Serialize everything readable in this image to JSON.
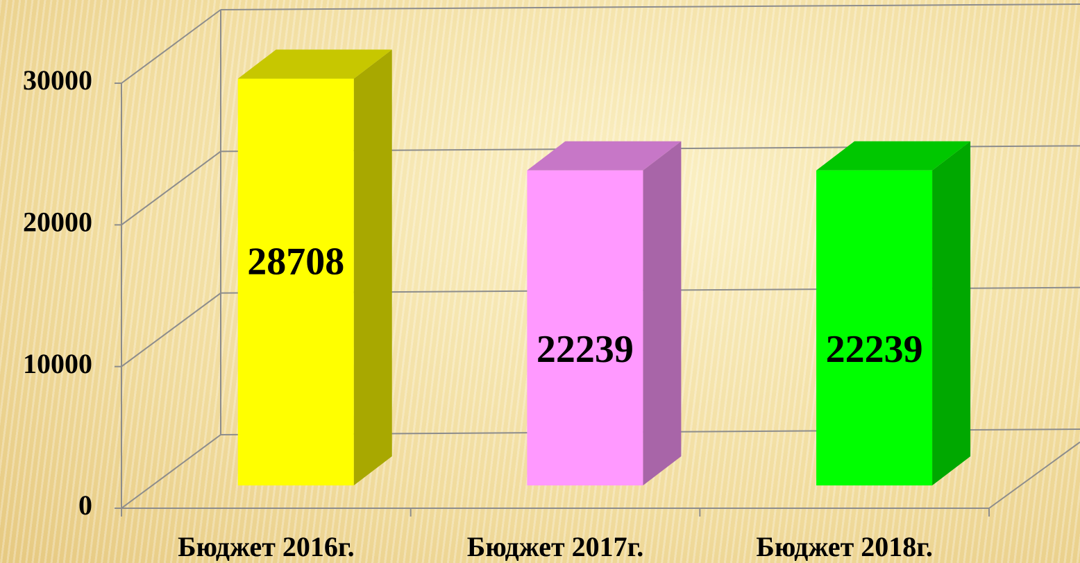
{
  "chart_data": {
    "type": "bar",
    "categories": [
      "Бюджет 2016г.",
      "Бюджет 2017г.",
      "Бюджет 2018г."
    ],
    "values": [
      28708,
      22239,
      22239
    ],
    "colors": [
      "#ffff00",
      "#ff99ff",
      "#00ff00"
    ],
    "ylim": [
      0,
      30000
    ],
    "yticks": [
      0,
      10000,
      20000,
      30000
    ],
    "grid": true
  }
}
